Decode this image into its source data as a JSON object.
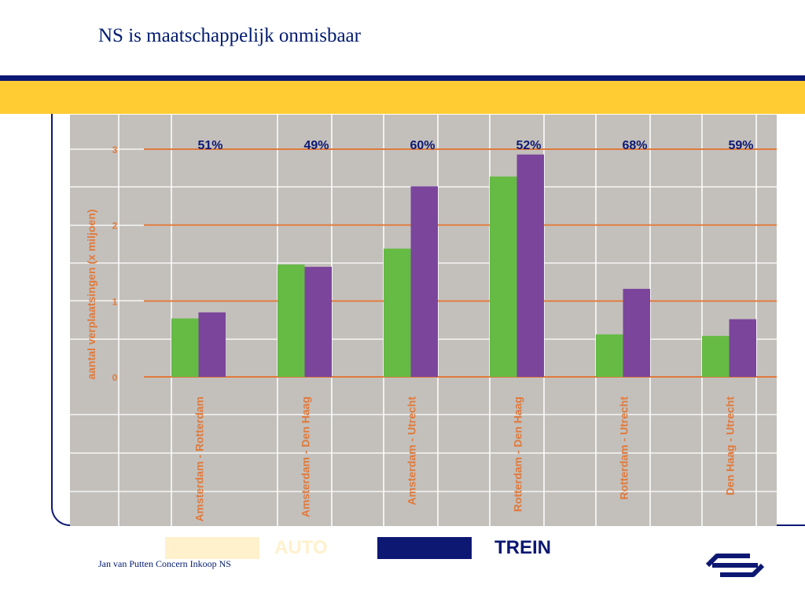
{
  "slide": {
    "title": "NS is maatschappelijk onmisbaar",
    "footer": "Jan van Putten Concern Inkoop NS",
    "logo_icon": "ns-logo-icon"
  },
  "colors": {
    "navy": "#0d1873",
    "yellow": "#ffcc33",
    "auto_swatch": "#fff1cc",
    "trein_swatch": "#0d1873",
    "green_series": "#66bb44",
    "purple_series": "#7b459c",
    "orange_lines": "#e07a3c",
    "plot_background": "#c3c0bc"
  },
  "legend": [
    {
      "label": "AUTO",
      "swatch": "#fff1cc",
      "text_color": "#fff1cc"
    },
    {
      "label": "TREIN",
      "swatch": "#0d1873",
      "text_color": "#0d1873"
    }
  ],
  "chart_data": {
    "type": "bar",
    "ylabel": "aantal verplaatsingen (x miljoen)",
    "ylim": [
      0,
      3
    ],
    "yticks": [
      "0",
      "1",
      "2",
      "3"
    ],
    "categories": [
      "Amsterdam - Rotterdam",
      "Amsterdam - Den Haag",
      "Amsterdam - Utrecht",
      "Rotterdam - Den Haag",
      "Rotterdam - Utrecht",
      "Den Haag - Utrecht"
    ],
    "percent_labels": [
      "51%",
      "49%",
      "60%",
      "52%",
      "68%",
      "59%"
    ],
    "series": [
      {
        "color": "#66bb44",
        "values": [
          0.77,
          1.48,
          1.69,
          2.64,
          0.56,
          0.54
        ]
      },
      {
        "color": "#7b459c",
        "values": [
          0.85,
          1.45,
          2.51,
          2.93,
          1.16,
          0.76
        ]
      }
    ],
    "grid": true,
    "legend_position": "bottom"
  }
}
